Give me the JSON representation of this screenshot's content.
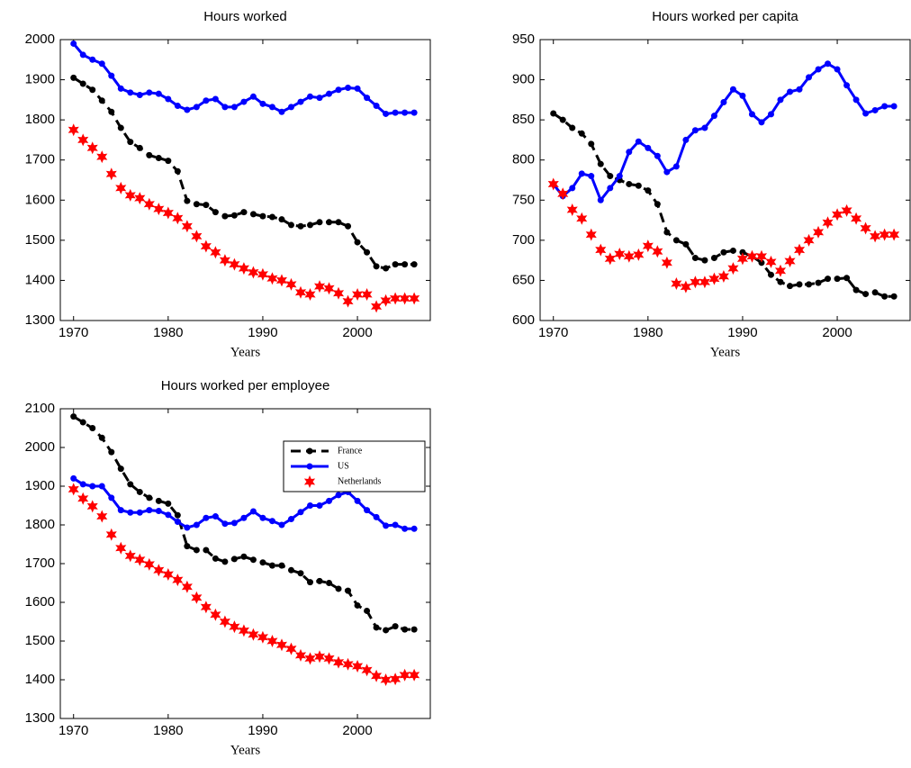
{
  "chart_data": [
    {
      "type": "line",
      "title": "Hours worked",
      "xlabel": "Years",
      "x": [
        1970,
        1971,
        1972,
        1973,
        1974,
        1975,
        1976,
        1977,
        1978,
        1979,
        1980,
        1981,
        1982,
        1983,
        1984,
        1985,
        1986,
        1987,
        1988,
        1989,
        1990,
        1991,
        1992,
        1993,
        1994,
        1995,
        1996,
        1997,
        1998,
        1999,
        2000,
        2001,
        2002,
        2003,
        2004,
        2005,
        2006
      ],
      "xlim": [
        1968.6,
        2007.7
      ],
      "xticks": [
        1970,
        1980,
        1990,
        2000
      ],
      "ylim": [
        1300,
        2000
      ],
      "yticks": [
        1300,
        1400,
        1500,
        1600,
        1700,
        1800,
        1900,
        2000
      ],
      "series": [
        {
          "color": "#000000",
          "style": "dashed",
          "marker": "circle",
          "values": [
            1905,
            1890,
            1875,
            1848,
            1820,
            1780,
            1745,
            1730,
            1712,
            1705,
            1698,
            1672,
            1598,
            1590,
            1588,
            1570,
            1560,
            1562,
            1570,
            1565,
            1560,
            1558,
            1552,
            1538,
            1535,
            1538,
            1545,
            1545,
            1545,
            1535,
            1495,
            1470,
            1435,
            1430,
            1440,
            1440,
            1440
          ]
        },
        {
          "color": "#0000ff",
          "style": "solid",
          "marker": "circle",
          "values": [
            1990,
            1962,
            1950,
            1940,
            1910,
            1878,
            1868,
            1862,
            1868,
            1865,
            1852,
            1835,
            1825,
            1832,
            1848,
            1852,
            1832,
            1832,
            1845,
            1858,
            1840,
            1832,
            1820,
            1832,
            1845,
            1858,
            1855,
            1865,
            1875,
            1880,
            1878,
            1855,
            1835,
            1815,
            1818,
            1818,
            1818
          ]
        },
        {
          "color": "#ff0000",
          "style": "none",
          "marker": "star",
          "values": [
            1775,
            1750,
            1730,
            1708,
            1665,
            1630,
            1612,
            1605,
            1590,
            1578,
            1568,
            1555,
            1535,
            1510,
            1485,
            1470,
            1450,
            1440,
            1430,
            1420,
            1415,
            1405,
            1400,
            1390,
            1370,
            1365,
            1385,
            1380,
            1368,
            1348,
            1365,
            1365,
            1335,
            1350,
            1355,
            1355,
            1355
          ]
        }
      ]
    },
    {
      "type": "line",
      "title": "Hours worked per capita",
      "xlabel": "Years",
      "x": [
        1970,
        1971,
        1972,
        1973,
        1974,
        1975,
        1976,
        1977,
        1978,
        1979,
        1980,
        1981,
        1982,
        1983,
        1984,
        1985,
        1986,
        1987,
        1988,
        1989,
        1990,
        1991,
        1992,
        1993,
        1994,
        1995,
        1996,
        1997,
        1998,
        1999,
        2000,
        2001,
        2002,
        2003,
        2004,
        2005,
        2006
      ],
      "xlim": [
        1968.6,
        2007.7
      ],
      "xticks": [
        1970,
        1980,
        1990,
        2000
      ],
      "ylim": [
        600,
        950
      ],
      "yticks": [
        600,
        650,
        700,
        750,
        800,
        850,
        900,
        950
      ],
      "series": [
        {
          "color": "#000000",
          "style": "dashed",
          "marker": "circle",
          "values": [
            858,
            850,
            840,
            833,
            820,
            795,
            780,
            775,
            770,
            768,
            762,
            745,
            710,
            700,
            695,
            678,
            675,
            678,
            685,
            687,
            685,
            680,
            672,
            657,
            648,
            643,
            645,
            645,
            647,
            652,
            652,
            653,
            638,
            633,
            635,
            630,
            630
          ]
        },
        {
          "color": "#0000ff",
          "style": "solid",
          "marker": "circle",
          "values": [
            770,
            755,
            765,
            783,
            780,
            750,
            765,
            780,
            810,
            823,
            815,
            805,
            785,
            792,
            825,
            837,
            840,
            855,
            872,
            888,
            880,
            857,
            847,
            857,
            875,
            885,
            888,
            903,
            913,
            920,
            913,
            893,
            875,
            858,
            862,
            867,
            867
          ]
        },
        {
          "color": "#ff0000",
          "style": "none",
          "marker": "star",
          "values": [
            770,
            758,
            738,
            727,
            707,
            688,
            677,
            683,
            680,
            682,
            693,
            686,
            672,
            646,
            642,
            648,
            648,
            652,
            655,
            665,
            677,
            680,
            680,
            673,
            662,
            674,
            688,
            700,
            710,
            722,
            732,
            737,
            727,
            715,
            705,
            707,
            707
          ]
        }
      ]
    },
    {
      "type": "line",
      "title": "Hours worked per employee",
      "xlabel": "Years",
      "legend": "upper right",
      "x": [
        1970,
        1971,
        1972,
        1973,
        1974,
        1975,
        1976,
        1977,
        1978,
        1979,
        1980,
        1981,
        1982,
        1983,
        1984,
        1985,
        1986,
        1987,
        1988,
        1989,
        1990,
        1991,
        1992,
        1993,
        1994,
        1995,
        1996,
        1997,
        1998,
        1999,
        2000,
        2001,
        2002,
        2003,
        2004,
        2005,
        2006
      ],
      "xlim": [
        1968.6,
        2007.7
      ],
      "xticks": [
        1970,
        1980,
        1990,
        2000
      ],
      "ylim": [
        1300,
        2100
      ],
      "yticks": [
        1300,
        1400,
        1500,
        1600,
        1700,
        1800,
        1900,
        2000,
        2100
      ],
      "series": [
        {
          "name": "France",
          "color": "#000000",
          "style": "dashed",
          "marker": "circle",
          "values": [
            2080,
            2065,
            2050,
            2025,
            1988,
            1945,
            1905,
            1885,
            1870,
            1862,
            1855,
            1825,
            1745,
            1735,
            1735,
            1713,
            1705,
            1712,
            1718,
            1710,
            1703,
            1695,
            1695,
            1683,
            1675,
            1652,
            1655,
            1650,
            1635,
            1630,
            1592,
            1578,
            1535,
            1528,
            1538,
            1530,
            1530
          ]
        },
        {
          "name": "US",
          "color": "#0000ff",
          "style": "solid",
          "marker": "circle",
          "values": [
            1920,
            1905,
            1900,
            1900,
            1870,
            1838,
            1832,
            1832,
            1838,
            1836,
            1826,
            1808,
            1793,
            1800,
            1818,
            1822,
            1803,
            1805,
            1818,
            1835,
            1818,
            1810,
            1800,
            1815,
            1833,
            1850,
            1850,
            1862,
            1877,
            1885,
            1862,
            1838,
            1820,
            1798,
            1800,
            1790,
            1790
          ]
        },
        {
          "name": "Netherlands",
          "color": "#ff0000",
          "style": "none",
          "marker": "star",
          "values": [
            1892,
            1868,
            1848,
            1822,
            1775,
            1740,
            1720,
            1710,
            1698,
            1683,
            1672,
            1658,
            1640,
            1612,
            1588,
            1568,
            1550,
            1537,
            1527,
            1517,
            1510,
            1500,
            1490,
            1480,
            1463,
            1455,
            1460,
            1455,
            1445,
            1440,
            1435,
            1425,
            1410,
            1400,
            1402,
            1412,
            1412
          ]
        }
      ]
    }
  ]
}
